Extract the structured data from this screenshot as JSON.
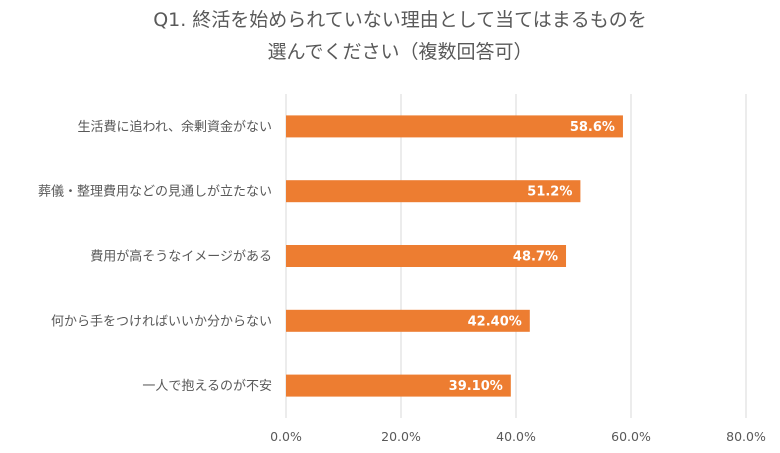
{
  "chart_data": {
    "type": "bar",
    "orientation": "horizontal",
    "title_line1": "Q1. 終活を始められていない理由として当てはまるものを",
    "title_line2": "選んでください（複数回答可）",
    "categories": [
      "生活費に追われ、余剰資金がない",
      "葬儀・整理費用などの見通しが立たない",
      "費用が高そうなイメージがある",
      "何から手をつければいいか分からない",
      "一人で抱えるのが不安"
    ],
    "values": [
      58.6,
      51.2,
      48.7,
      42.4,
      39.1
    ],
    "data_labels": [
      "58.6%",
      "51.2%",
      "48.7%",
      "42.40%",
      "39.10%"
    ],
    "xlim": [
      0,
      80
    ],
    "ticks": [
      0,
      20,
      40,
      60,
      80
    ],
    "tick_labels": [
      "0.0%",
      "20.0%",
      "40.0%",
      "60.0%",
      "80.0%"
    ],
    "grid": true,
    "legend": "none",
    "bar_color": "#ED7D31",
    "xlabel": "",
    "ylabel": ""
  }
}
